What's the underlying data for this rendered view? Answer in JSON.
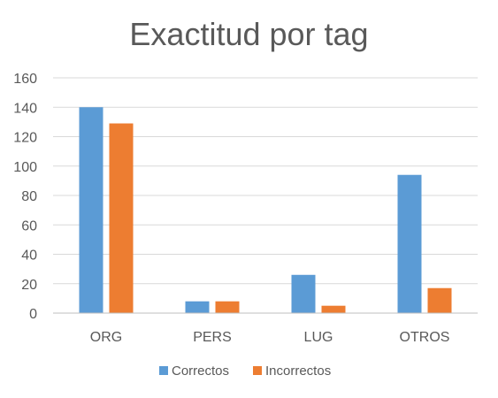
{
  "chart_data": {
    "type": "bar",
    "title": "Exactitud por tag",
    "categories": [
      "ORG",
      "PERS",
      "LUG",
      "OTROS"
    ],
    "series": [
      {
        "name": "Correctos",
        "values": [
          140,
          8,
          26,
          94
        ],
        "color": "#5B9BD5"
      },
      {
        "name": "Incorrectos",
        "values": [
          129,
          8,
          5,
          17
        ],
        "color": "#ED7D31"
      }
    ],
    "ylim": [
      0,
      160
    ],
    "yticks": [
      0,
      20,
      40,
      60,
      80,
      100,
      120,
      140,
      160
    ],
    "grid": true,
    "legend_position": "bottom",
    "gridline_color": "#D9D9D9",
    "axis_color": "#BFBFBF",
    "text_color": "#595959"
  }
}
